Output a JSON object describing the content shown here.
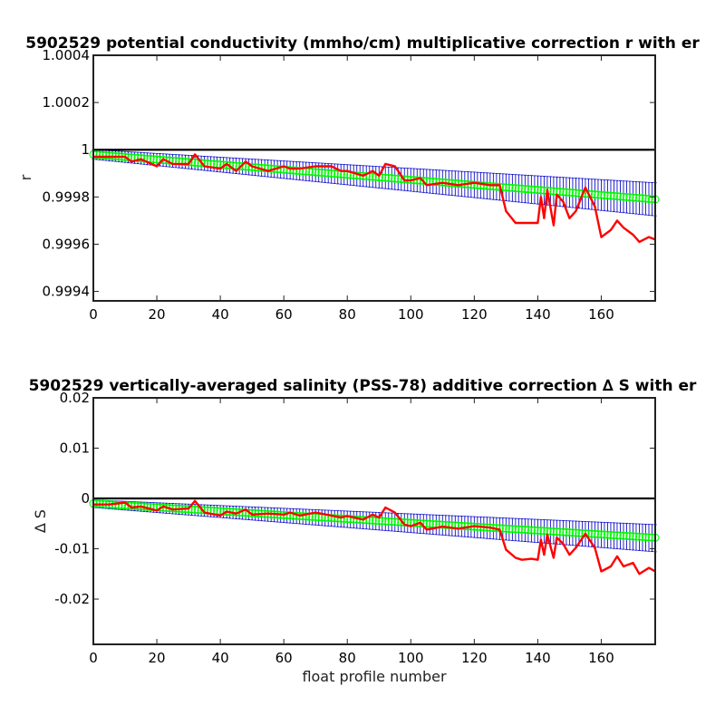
{
  "chart_data": [
    {
      "type": "line",
      "title": "5902529 potential conductivity (mmho/cm) multiplicative correction r with er",
      "xlabel": "",
      "ylabel": "r",
      "xlim": [
        0,
        177
      ],
      "ylim": [
        0.99936,
        1.0004
      ],
      "xticks": [
        0,
        20,
        40,
        60,
        80,
        100,
        120,
        140,
        160
      ],
      "xtick_labels": [
        "0",
        "20",
        "40",
        "60",
        "80",
        "100",
        "120",
        "140",
        "160"
      ],
      "yticks": [
        0.9994,
        0.9996,
        0.9998,
        1,
        1.0002,
        1.0004
      ],
      "ytick_labels": [
        "0.9994",
        "0.9996",
        "0.9998",
        "1",
        "1.0002",
        "1.0004"
      ],
      "reference_line": 1,
      "series": [
        {
          "role": "fit",
          "color": "#00ff00",
          "x": [
            0,
            177
          ],
          "y": [
            0.99998,
            0.99979
          ],
          "error_x": [
            0,
            177
          ],
          "error_low": [
            0.99996,
            0.99972
          ],
          "error_high": [
            1.0,
            0.99986
          ]
        },
        {
          "role": "data",
          "color": "#ff0000",
          "x": [
            0,
            5,
            10,
            12,
            15,
            20,
            22,
            25,
            30,
            32,
            35,
            40,
            42,
            45,
            48,
            50,
            55,
            60,
            62,
            65,
            70,
            75,
            78,
            80,
            85,
            88,
            90,
            92,
            95,
            98,
            100,
            103,
            105,
            110,
            115,
            120,
            125,
            128,
            130,
            133,
            135,
            138,
            140,
            141,
            142,
            143,
            145,
            146,
            148,
            150,
            152,
            155,
            158,
            160,
            163,
            165,
            167,
            170,
            172,
            175,
            177
          ],
          "y": [
            0.99997,
            0.99997,
            0.99997,
            0.99995,
            0.99996,
            0.99993,
            0.99996,
            0.99994,
            0.99994,
            0.99998,
            0.99993,
            0.99992,
            0.99994,
            0.99991,
            0.99995,
            0.99993,
            0.99991,
            0.99993,
            0.99992,
            0.99992,
            0.99993,
            0.99993,
            0.99991,
            0.99991,
            0.99989,
            0.99991,
            0.99989,
            0.99994,
            0.99993,
            0.99987,
            0.99987,
            0.99988,
            0.99985,
            0.99986,
            0.99985,
            0.99986,
            0.99985,
            0.99985,
            0.99974,
            0.99969,
            0.99969,
            0.99969,
            0.99969,
            0.9998,
            0.99971,
            0.99983,
            0.99968,
            0.99981,
            0.99978,
            0.99971,
            0.99974,
            0.99984,
            0.99976,
            0.99963,
            0.99966,
            0.9997,
            0.99967,
            0.99964,
            0.99961,
            0.99963,
            0.99962
          ]
        }
      ]
    },
    {
      "type": "line",
      "title": "5902529 vertically-averaged salinity (PSS-78) additive correction ∆ S with er",
      "xlabel": "float profile number",
      "ylabel": "∆ S",
      "xlim": [
        0,
        177
      ],
      "ylim": [
        -0.029,
        0.02
      ],
      "xticks": [
        0,
        20,
        40,
        60,
        80,
        100,
        120,
        140,
        160
      ],
      "xtick_labels": [
        "0",
        "20",
        "40",
        "60",
        "80",
        "100",
        "120",
        "140",
        "160"
      ],
      "yticks": [
        -0.02,
        -0.01,
        0,
        0.01,
        0.02
      ],
      "ytick_labels": [
        "-0.02",
        "-0.01",
        "0",
        "0.01",
        "0.02"
      ],
      "reference_line": 0,
      "series": [
        {
          "role": "fit",
          "color": "#00ff00",
          "x": [
            0,
            177
          ],
          "y": [
            -0.001,
            -0.0078
          ],
          "error_x": [
            0,
            177
          ],
          "error_low": [
            -0.0018,
            -0.0106
          ],
          "error_high": [
            -0.0003,
            -0.0052
          ]
        },
        {
          "role": "data",
          "color": "#ff0000",
          "x": [
            0,
            5,
            10,
            12,
            15,
            20,
            22,
            25,
            30,
            32,
            35,
            40,
            42,
            45,
            48,
            50,
            55,
            60,
            62,
            65,
            70,
            75,
            78,
            80,
            85,
            88,
            90,
            92,
            95,
            98,
            100,
            103,
            105,
            110,
            115,
            120,
            125,
            128,
            130,
            133,
            135,
            138,
            140,
            141,
            142,
            143,
            145,
            146,
            148,
            150,
            152,
            155,
            158,
            160,
            163,
            165,
            167,
            170,
            172,
            175,
            177
          ],
          "y": [
            -0.0012,
            -0.0012,
            -0.0008,
            -0.0018,
            -0.0016,
            -0.0024,
            -0.0016,
            -0.0022,
            -0.002,
            -0.0005,
            -0.0028,
            -0.0034,
            -0.0026,
            -0.003,
            -0.0022,
            -0.0032,
            -0.003,
            -0.0032,
            -0.0028,
            -0.0034,
            -0.0028,
            -0.0034,
            -0.0038,
            -0.0035,
            -0.0042,
            -0.0032,
            -0.0038,
            -0.0018,
            -0.0028,
            -0.0052,
            -0.0055,
            -0.0048,
            -0.0062,
            -0.0056,
            -0.006,
            -0.0055,
            -0.0058,
            -0.0062,
            -0.0102,
            -0.0118,
            -0.0122,
            -0.012,
            -0.0122,
            -0.0082,
            -0.0112,
            -0.0072,
            -0.0118,
            -0.0078,
            -0.009,
            -0.0112,
            -0.0098,
            -0.007,
            -0.0098,
            -0.0145,
            -0.0135,
            -0.0115,
            -0.0135,
            -0.0128,
            -0.015,
            -0.0138,
            -0.0145
          ]
        }
      ]
    }
  ]
}
